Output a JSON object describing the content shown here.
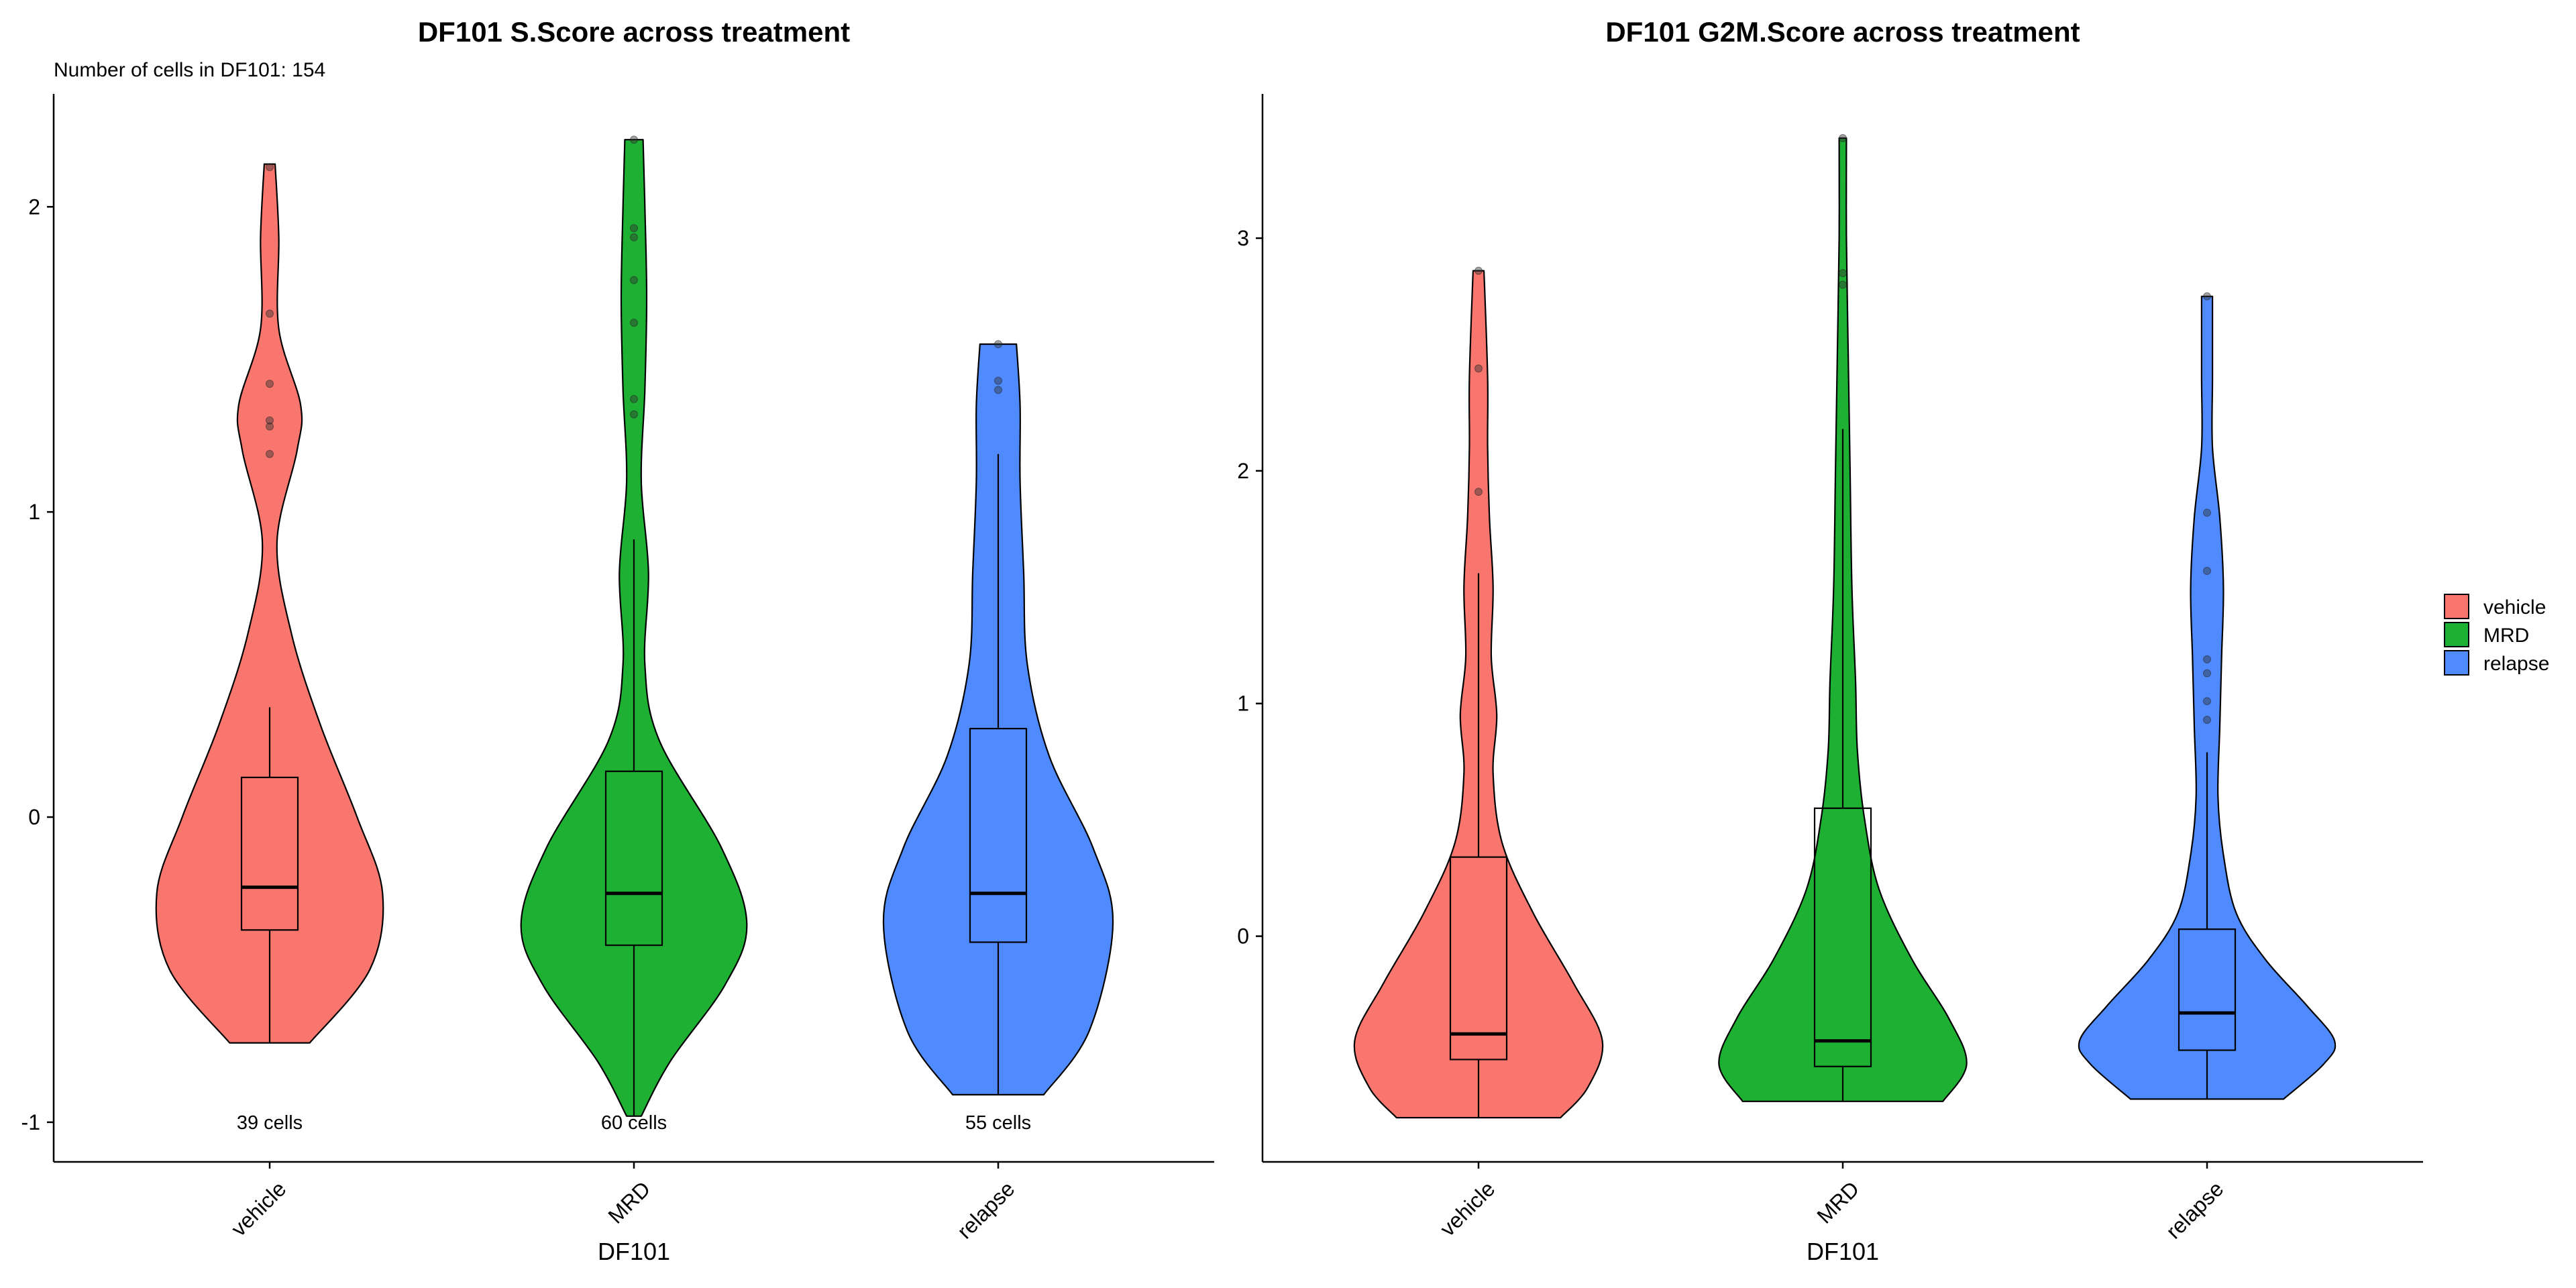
{
  "colors": {
    "vehicle": "#F8766D",
    "MRD": "#1DB032",
    "relapse": "#4F8BFF",
    "outline": "#000000",
    "background": "#FFFFFF",
    "outlier_points": "#333333"
  },
  "legend": {
    "items": [
      {
        "label": "vehicle",
        "color": "#F8766D"
      },
      {
        "label": "MRD",
        "color": "#1DB032"
      },
      {
        "label": "relapse",
        "color": "#4F8BFF"
      }
    ],
    "placement": "right"
  },
  "chart_data": [
    {
      "type": "violin",
      "title": "DF101 S.Score across treatment",
      "subtitle": "Number of cells in DF101: 154",
      "xlabel": "DF101",
      "ylabel": "",
      "categories": [
        "vehicle",
        "MRD",
        "relapse"
      ],
      "ylim": [
        -1.13,
        2.37
      ],
      "yticks": [
        -1,
        0,
        1,
        2
      ],
      "ytick_labels": [
        "-1",
        "0",
        "1",
        "2"
      ],
      "count_labels": [
        "39 cells",
        "60 cells",
        "55 cells"
      ],
      "count_label_y": -1,
      "grid": false,
      "series": [
        {
          "name": "vehicle",
          "violin": {
            "ys": [
              -0.74,
              -0.5,
              -0.25,
              0,
              0.3,
              0.6,
              0.9,
              1.2,
              1.35,
              1.6,
              1.9,
              2.14
            ],
            "widths": [
              0.22,
              0.55,
              0.62,
              0.48,
              0.28,
              0.12,
              0.04,
              0.15,
              0.17,
              0.05,
              0.05,
              0.03
            ]
          },
          "box": {
            "whisker_low": -0.74,
            "q1": -0.37,
            "median": -0.23,
            "q3": 0.13,
            "whisker_high": 0.36
          },
          "outliers": [
            1.19,
            1.28,
            1.3,
            1.42,
            1.65,
            2.13
          ]
        },
        {
          "name": "MRD",
          "violin": {
            "ys": [
              -0.98,
              -0.8,
              -0.55,
              -0.35,
              -0.1,
              0.25,
              0.5,
              0.8,
              1.1,
              1.4,
              1.7,
              2.0,
              2.22
            ],
            "widths": [
              0.04,
              0.2,
              0.5,
              0.62,
              0.48,
              0.14,
              0.06,
              0.08,
              0.04,
              0.06,
              0.07,
              0.06,
              0.05
            ]
          },
          "box": {
            "whisker_low": -0.98,
            "q1": -0.42,
            "median": -0.25,
            "q3": 0.15,
            "whisker_high": 0.91
          },
          "outliers": [
            1.32,
            1.37,
            1.62,
            1.76,
            1.9,
            1.93,
            2.22
          ]
        },
        {
          "name": "relapse",
          "violin": {
            "ys": [
              -0.91,
              -0.7,
              -0.35,
              -0.1,
              0.2,
              0.5,
              0.8,
              1.1,
              1.35,
              1.55
            ],
            "widths": [
              0.25,
              0.5,
              0.63,
              0.52,
              0.28,
              0.16,
              0.14,
              0.12,
              0.12,
              0.1
            ]
          },
          "box": {
            "whisker_low": -0.91,
            "q1": -0.41,
            "median": -0.25,
            "q3": 0.29,
            "whisker_high": 1.19
          },
          "outliers": [
            1.4,
            1.43,
            1.55
          ]
        }
      ]
    },
    {
      "type": "violin",
      "title": "DF101 G2M.Score across treatment",
      "subtitle": "",
      "xlabel": "DF101",
      "ylabel": "",
      "categories": [
        "vehicle",
        "MRD",
        "relapse"
      ],
      "ylim": [
        -0.97,
        3.62
      ],
      "yticks": [
        0,
        1,
        2,
        3
      ],
      "ytick_labels": [
        "0",
        "1",
        "2",
        "3"
      ],
      "count_labels": [],
      "grid": false,
      "series": [
        {
          "name": "vehicle",
          "violin": {
            "ys": [
              -0.78,
              -0.65,
              -0.45,
              -0.2,
              0.1,
              0.4,
              0.7,
              0.95,
              1.2,
              1.5,
              1.8,
              2.1,
              2.4,
              2.86
            ],
            "widths": [
              0.45,
              0.6,
              0.68,
              0.52,
              0.3,
              0.13,
              0.08,
              0.1,
              0.07,
              0.08,
              0.06,
              0.05,
              0.05,
              0.03
            ]
          },
          "box": {
            "whisker_low": -0.78,
            "q1": -0.53,
            "median": -0.42,
            "q3": 0.34,
            "whisker_high": 1.56
          },
          "outliers": [
            1.91,
            2.44,
            2.86
          ]
        },
        {
          "name": "MRD",
          "violin": {
            "ys": [
              -0.71,
              -0.55,
              -0.35,
              -0.1,
              0.2,
              0.5,
              0.8,
              1.1,
              1.5,
              2.0,
              2.5,
              3.0,
              3.43
            ],
            "widths": [
              0.55,
              0.68,
              0.58,
              0.38,
              0.2,
              0.12,
              0.08,
              0.07,
              0.05,
              0.04,
              0.03,
              0.02,
              0.02
            ]
          },
          "box": {
            "whisker_low": -0.71,
            "q1": -0.56,
            "median": -0.45,
            "q3": 0.55,
            "whisker_high": 2.18
          },
          "outliers": [
            2.8,
            2.85,
            3.43
          ]
        },
        {
          "name": "relapse",
          "violin": {
            "ys": [
              -0.7,
              -0.55,
              -0.45,
              -0.3,
              -0.1,
              0.1,
              0.35,
              0.6,
              0.9,
              1.2,
              1.5,
              1.8,
              2.1,
              2.4,
              2.75
            ],
            "widths": [
              0.42,
              0.64,
              0.7,
              0.55,
              0.32,
              0.16,
              0.09,
              0.06,
              0.07,
              0.08,
              0.09,
              0.07,
              0.03,
              0.03,
              0.03
            ]
          },
          "box": {
            "whisker_low": -0.7,
            "q1": -0.49,
            "median": -0.33,
            "q3": 0.03,
            "whisker_high": 0.79
          },
          "outliers": [
            0.93,
            1.01,
            1.13,
            1.19,
            1.57,
            1.82,
            2.75
          ]
        }
      ]
    }
  ]
}
